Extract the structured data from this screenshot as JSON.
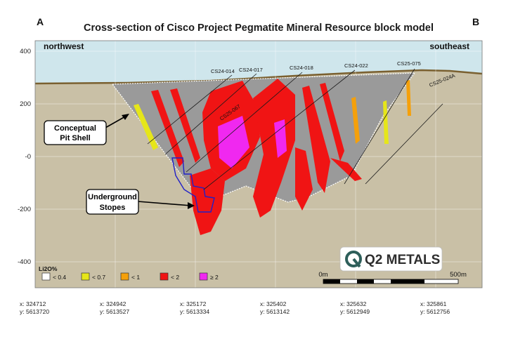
{
  "title": "Cross-section of Cisco Project Pegmatite Mineral Resource block model",
  "corner_left": "A",
  "corner_right": "B",
  "direction_left": "northwest",
  "direction_right": "southeast",
  "y_axis_ticks": [
    "400",
    "200",
    "-0",
    "-200",
    "-400"
  ],
  "x_coordinates": [
    {
      "x": "x: 324712",
      "y": "y: 5613720"
    },
    {
      "x": "x: 324942",
      "y": "y: 5613527"
    },
    {
      "x": "x: 325172",
      "y": "y: 5613334"
    },
    {
      "x": "x: 325402",
      "y": "y: 5613142"
    },
    {
      "x": "x: 325632",
      "y": "y: 5612949"
    },
    {
      "x": "x: 325861",
      "y": "y: 5612756"
    }
  ],
  "drillholes": [
    "CS24-014",
    "CS24-017",
    "CS24-018",
    "CS24-022",
    "CS25-075",
    "CS25-024A",
    "CS25-067"
  ],
  "callouts": {
    "pit_line1": "Conceptual",
    "pit_line2": "Pit Shell",
    "stopes_line1": "Underground",
    "stopes_line2": "Stopes"
  },
  "legend": {
    "title": "Li2O%",
    "items": [
      {
        "label": "< 0.4",
        "color": "#ffffff"
      },
      {
        "label": "< 0.7",
        "color": "#e6e619"
      },
      {
        "label": "< 1",
        "color": "#f5a00a"
      },
      {
        "label": "< 2",
        "color": "#f01414"
      },
      {
        "label": "≥ 2",
        "color": "#f028f0"
      }
    ]
  },
  "logo": {
    "text": "Q2 METALS"
  },
  "scale_bar": {
    "start": "0m",
    "end": "500m"
  },
  "colors": {
    "sky": "#cfe6ec",
    "ground": "#c9c0a6",
    "pit": "#9a9a9a",
    "ore": "#f01414",
    "high_grade": "#f028f0",
    "mid_grade": "#f5a00a",
    "low_grade": "#e6e619",
    "stope": "#2020c8",
    "overburden": "#7a6030"
  }
}
